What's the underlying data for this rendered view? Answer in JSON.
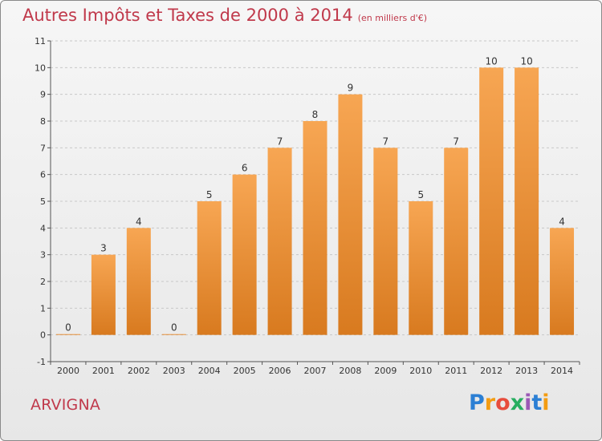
{
  "header": {
    "title": "Autres Impôts et Taxes de 2000 à 2014",
    "unit": "(en milliers d'€)"
  },
  "footer": {
    "commune": "ARVIGNA",
    "logo_letters": [
      {
        "ch": "P",
        "color": "#2b7fd4"
      },
      {
        "ch": "r",
        "color": "#f39c12"
      },
      {
        "ch": "o",
        "color": "#e74c3c"
      },
      {
        "ch": "x",
        "color": "#27ae60"
      },
      {
        "ch": "i",
        "color": "#9b59b6"
      },
      {
        "ch": "t",
        "color": "#2b7fd4"
      },
      {
        "ch": "i",
        "color": "#f39c12"
      }
    ]
  },
  "chart_data": {
    "type": "bar",
    "title": "Autres Impôts et Taxes de 2000 à 2014",
    "subtitle": "(en milliers d'€)",
    "xlabel": "",
    "ylabel": "",
    "categories": [
      "2000",
      "2001",
      "2002",
      "2003",
      "2004",
      "2005",
      "2006",
      "2007",
      "2008",
      "2009",
      "2010",
      "2011",
      "2012",
      "2013",
      "2014"
    ],
    "values": [
      0,
      3,
      4,
      0,
      5,
      6,
      7,
      8,
      9,
      7,
      5,
      7,
      10,
      10,
      4
    ],
    "data_labels": [
      "0",
      "3",
      "4",
      "0",
      "5",
      "6",
      "7",
      "8",
      "9",
      "7",
      "5",
      "7",
      "10",
      "10",
      "4"
    ],
    "ylim": [
      -1,
      11
    ],
    "yticks": [
      "-1",
      "0",
      "1",
      "2",
      "3",
      "4",
      "5",
      "6",
      "7",
      "8",
      "9",
      "10",
      "11"
    ],
    "grid": "horizontal dashed",
    "bar_color_top": "#f7a653",
    "bar_color_bottom": "#d87a1f",
    "legend": "none"
  }
}
